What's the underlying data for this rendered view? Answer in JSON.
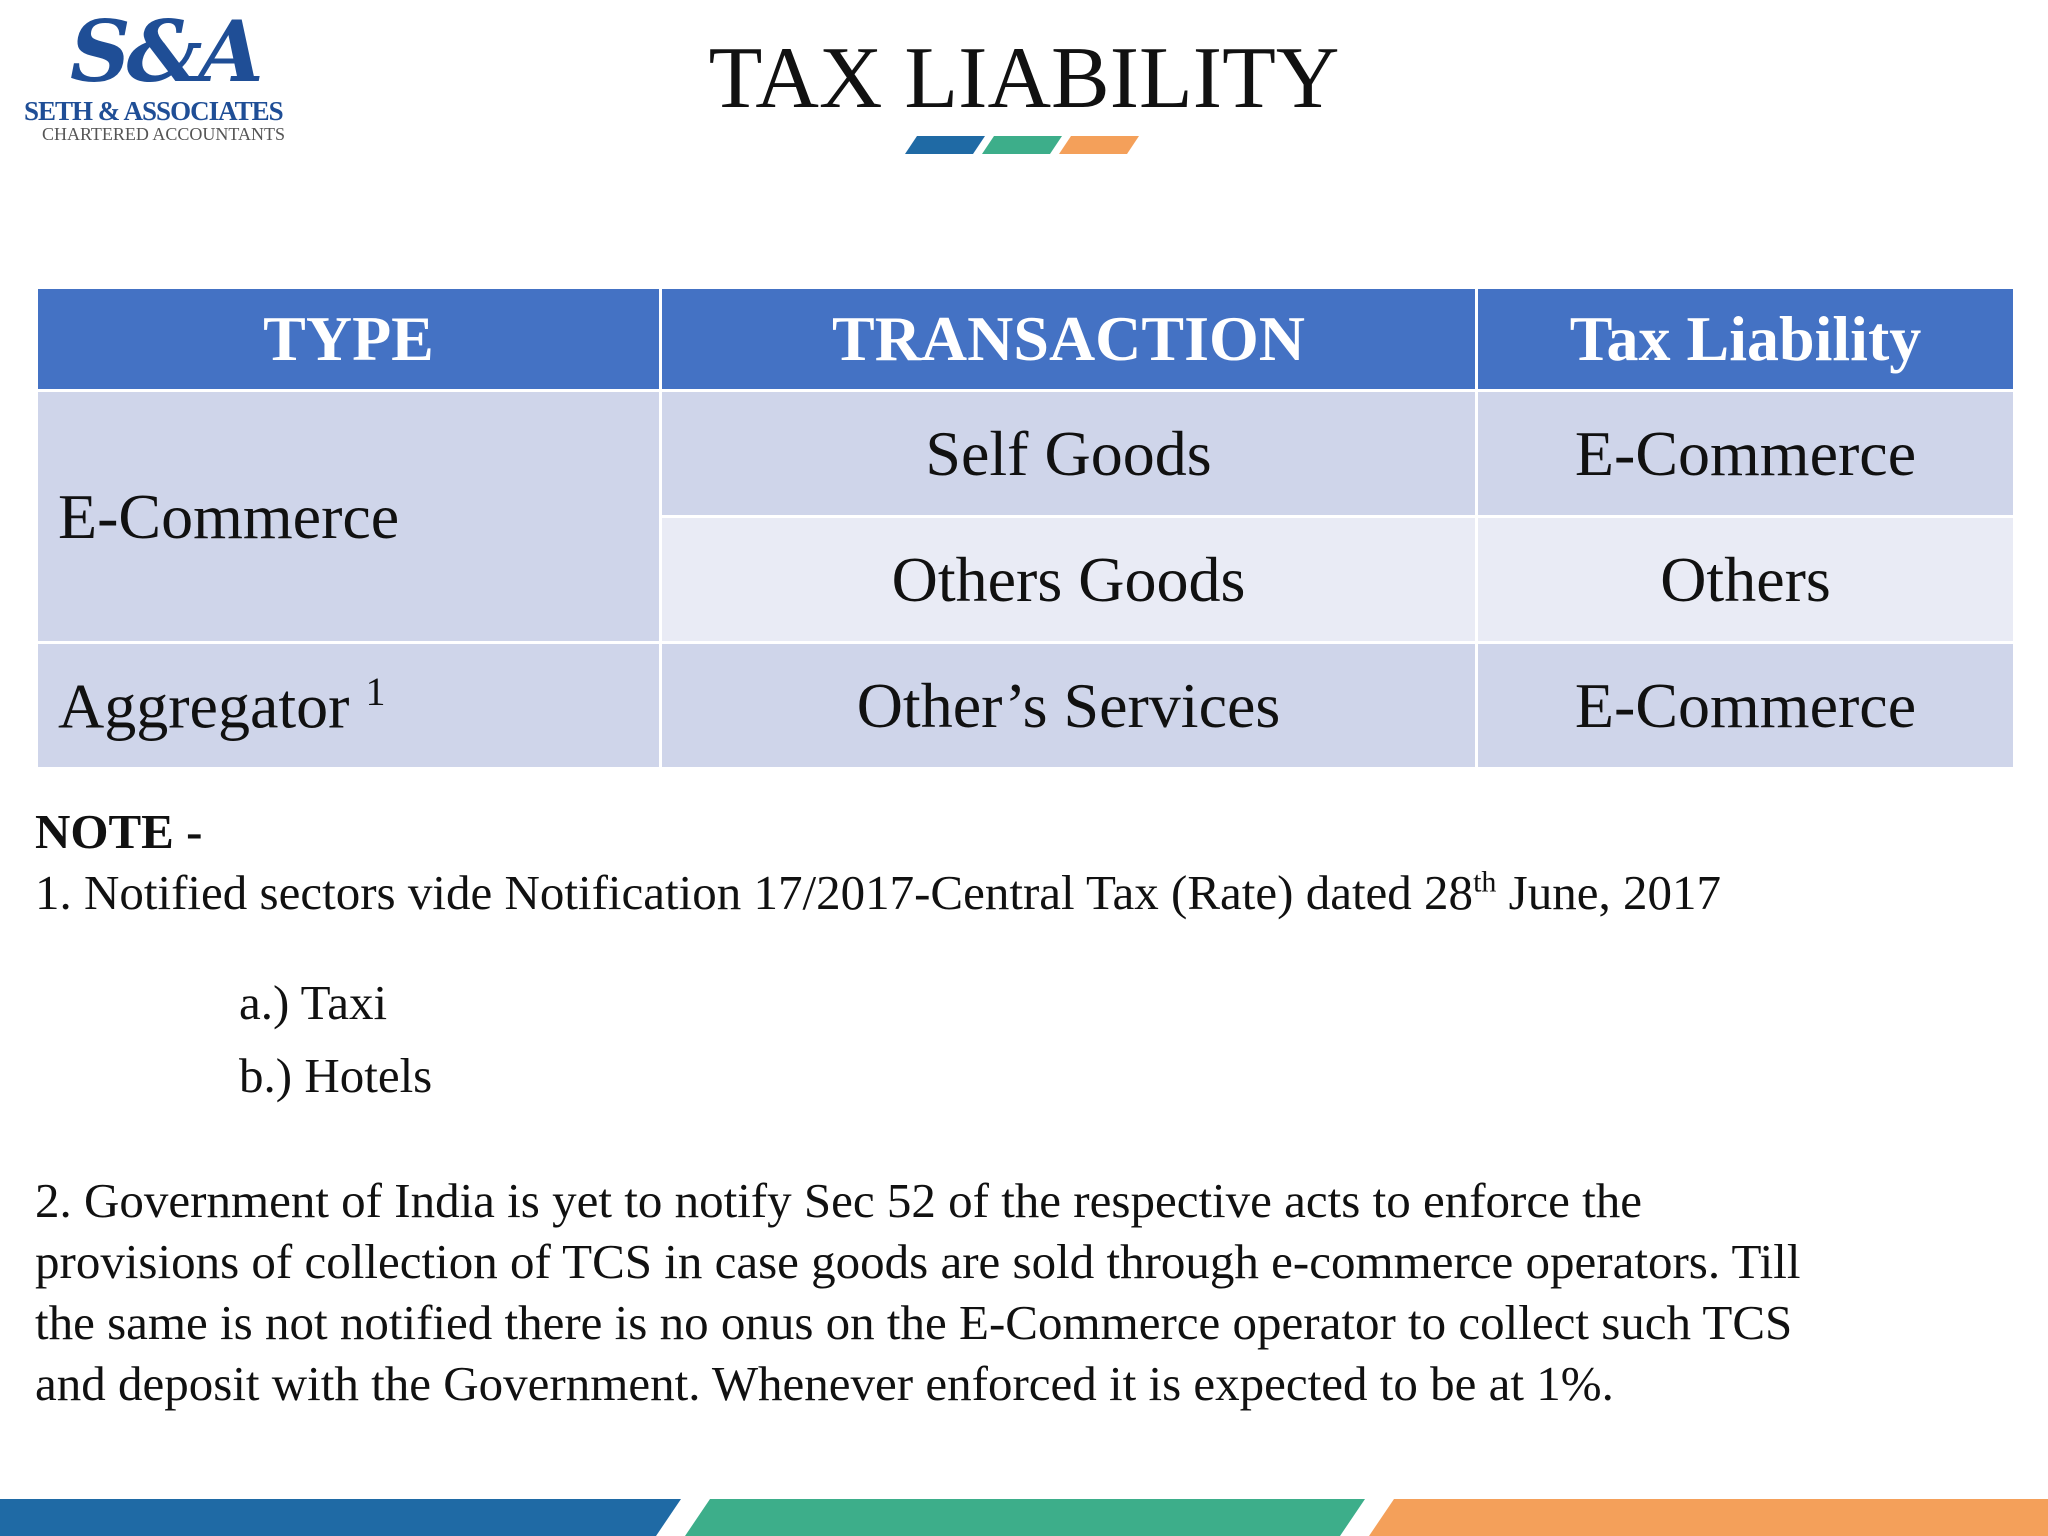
{
  "header": {
    "logo_mark": "S&A",
    "firm": "SETH & ASSOCIATES",
    "subtitle": "CHARTERED ACCOUNTANTS",
    "title": "TAX LIABILITY"
  },
  "table": {
    "columns": [
      "TYPE",
      "TRANSACTION",
      "Tax Liability"
    ],
    "rows": [
      {
        "type": "E-Commerce",
        "transactions": [
          {
            "transaction": "Self Goods",
            "liability": "E-Commerce"
          },
          {
            "transaction": "Others Goods",
            "liability": "Others"
          }
        ]
      },
      {
        "type": "Aggregator",
        "footnote": "1",
        "transactions": [
          {
            "transaction": "Other’s Services",
            "liability": "E-Commerce"
          }
        ]
      }
    ]
  },
  "notes": {
    "heading": "NOTE -",
    "note1": {
      "text": "1. Notified sectors vide Notification 17/2017-Central Tax (Rate) dated 28",
      "sup": "th",
      "tail": " June, 2017",
      "items": [
        "a.) Taxi",
        "b.) Hotels"
      ]
    },
    "note2": {
      "lines": [
        "2. Government of India is yet to notify Sec 52 of the respective acts to enforce the",
        "provisions of collection of TCS in case goods are sold through e-commerce operators. Till",
        "the same is not notified there is no onus on the E-Commerce operator to collect such TCS",
        "and deposit with the Government. Whenever enforced it is expected to be at 1%."
      ]
    }
  }
}
